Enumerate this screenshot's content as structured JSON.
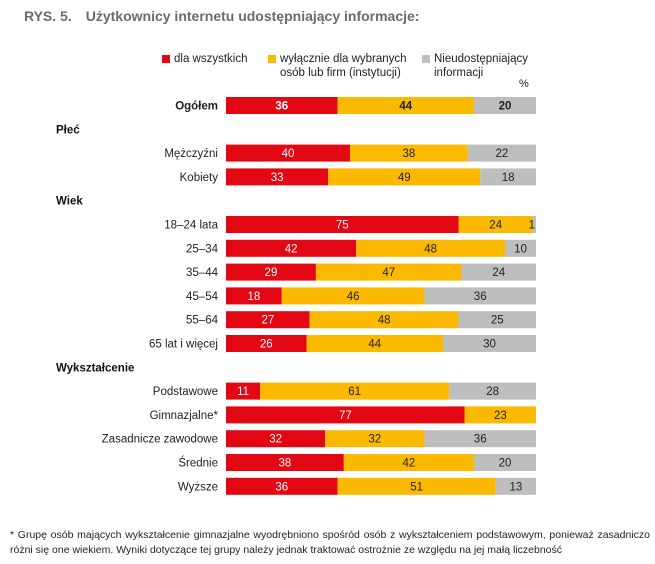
{
  "figure": {
    "number": "RYS. 5.",
    "title": "Użytkownicy internetu udostępniający informacje:"
  },
  "legend": [
    {
      "label_line1": "dla wszystkich",
      "label_line2": "",
      "color": "#e30613"
    },
    {
      "label_line1": "wyłącznie dla wybranych",
      "label_line2": "osób lub firm (instytucji)",
      "color": "#fbb900"
    },
    {
      "label_line1": "Nieudostępniający",
      "label_line2": "informacji",
      "color": "#bebebe"
    }
  ],
  "unit": "%",
  "footnote": "* Grupę osób mających wykształcenie gimnazjalne wyodrębniono spośród osób z wykształceniem podstawowym, ponieważ zasadniczo różni się one wiekiem. Wyniki dotyczące tej grupy należy jednak traktować ostrożnie ze względu na jej małą liczebność",
  "colors": {
    "all": "#e30613",
    "selected": "#fbb900",
    "none": "#bebebe"
  },
  "chart_data": {
    "type": "bar",
    "stacked": true,
    "orientation": "horizontal",
    "xlim": [
      0,
      100
    ],
    "series": [
      {
        "name": "dla wszystkich",
        "color": "#e30613"
      },
      {
        "name": "wyłącznie dla wybranych osób lub firm (instytucji)",
        "color": "#fbb900"
      },
      {
        "name": "Nieudostępniający informacji",
        "color": "#bebebe"
      }
    ],
    "rows": [
      {
        "kind": "bar",
        "label": "Ogółem",
        "bold": true,
        "values": [
          36,
          44,
          20
        ]
      },
      {
        "kind": "group",
        "label": "Płeć"
      },
      {
        "kind": "bar",
        "label": "Mężczyźni",
        "values": [
          40,
          38,
          22
        ]
      },
      {
        "kind": "bar",
        "label": "Kobiety",
        "values": [
          33,
          49,
          18
        ]
      },
      {
        "kind": "group",
        "label": "Wiek"
      },
      {
        "kind": "bar",
        "label": "18–24 lata",
        "values": [
          75,
          24,
          1
        ]
      },
      {
        "kind": "bar",
        "label": "25–34",
        "values": [
          42,
          48,
          10
        ]
      },
      {
        "kind": "bar",
        "label": "35–44",
        "values": [
          29,
          47,
          24
        ]
      },
      {
        "kind": "bar",
        "label": "45–54",
        "values": [
          18,
          46,
          36
        ]
      },
      {
        "kind": "bar",
        "label": "55–64",
        "values": [
          27,
          48,
          25
        ]
      },
      {
        "kind": "bar",
        "label": "65 lat i więcej",
        "values": [
          26,
          44,
          30
        ]
      },
      {
        "kind": "group",
        "label": "Wykształcenie"
      },
      {
        "kind": "bar",
        "label": "Podstawowe",
        "values": [
          11,
          61,
          28
        ]
      },
      {
        "kind": "bar",
        "label": "Gimnazjalne*",
        "values": [
          77,
          23,
          0
        ]
      },
      {
        "kind": "bar",
        "label": "Zasadnicze zawodowe",
        "values": [
          32,
          32,
          36
        ]
      },
      {
        "kind": "bar",
        "label": "Średnie",
        "values": [
          38,
          42,
          20
        ]
      },
      {
        "kind": "bar",
        "label": "Wyższe",
        "values": [
          36,
          51,
          13
        ]
      }
    ]
  }
}
